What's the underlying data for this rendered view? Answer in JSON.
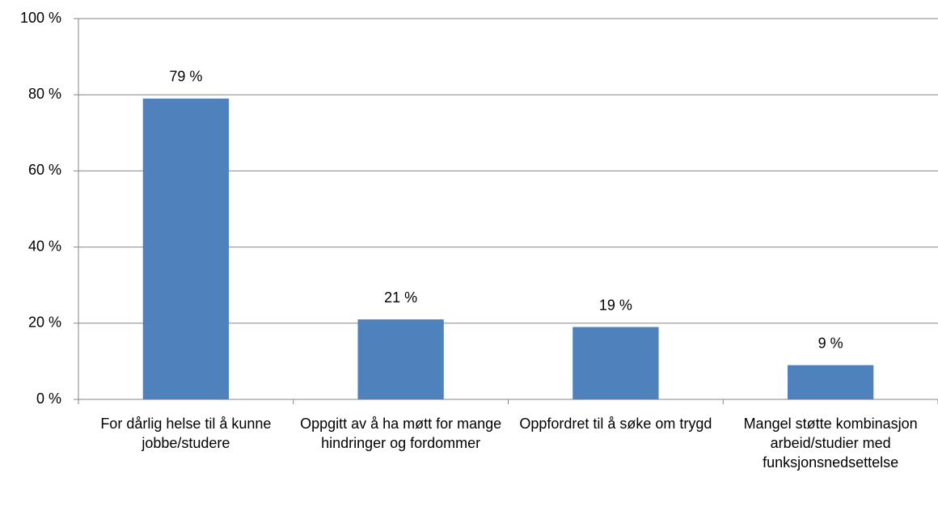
{
  "chart_data": {
    "type": "bar",
    "categories": [
      "For dårlig helse til å kunne jobbe/studere",
      "Oppgitt av å ha møtt for mange hindringer og fordommer",
      "Oppfordret til å søke om trygd",
      "Mangel støtte kombinasjon arbeid/studier med funksjonsnedsettelse"
    ],
    "values": [
      79,
      21,
      19,
      9
    ],
    "value_labels": [
      "79 %",
      "21 %",
      "19 %",
      "9 %"
    ],
    "color": "#4f81bd",
    "ylim": [
      0,
      100
    ],
    "yticks": [
      {
        "value": 0,
        "label": "0 %"
      },
      {
        "value": 20,
        "label": "20 %"
      },
      {
        "value": 40,
        "label": "40 %"
      },
      {
        "value": 60,
        "label": "60 %"
      },
      {
        "value": 80,
        "label": "80 %"
      },
      {
        "value": 100,
        "label": "100 %"
      }
    ],
    "grid": true
  }
}
